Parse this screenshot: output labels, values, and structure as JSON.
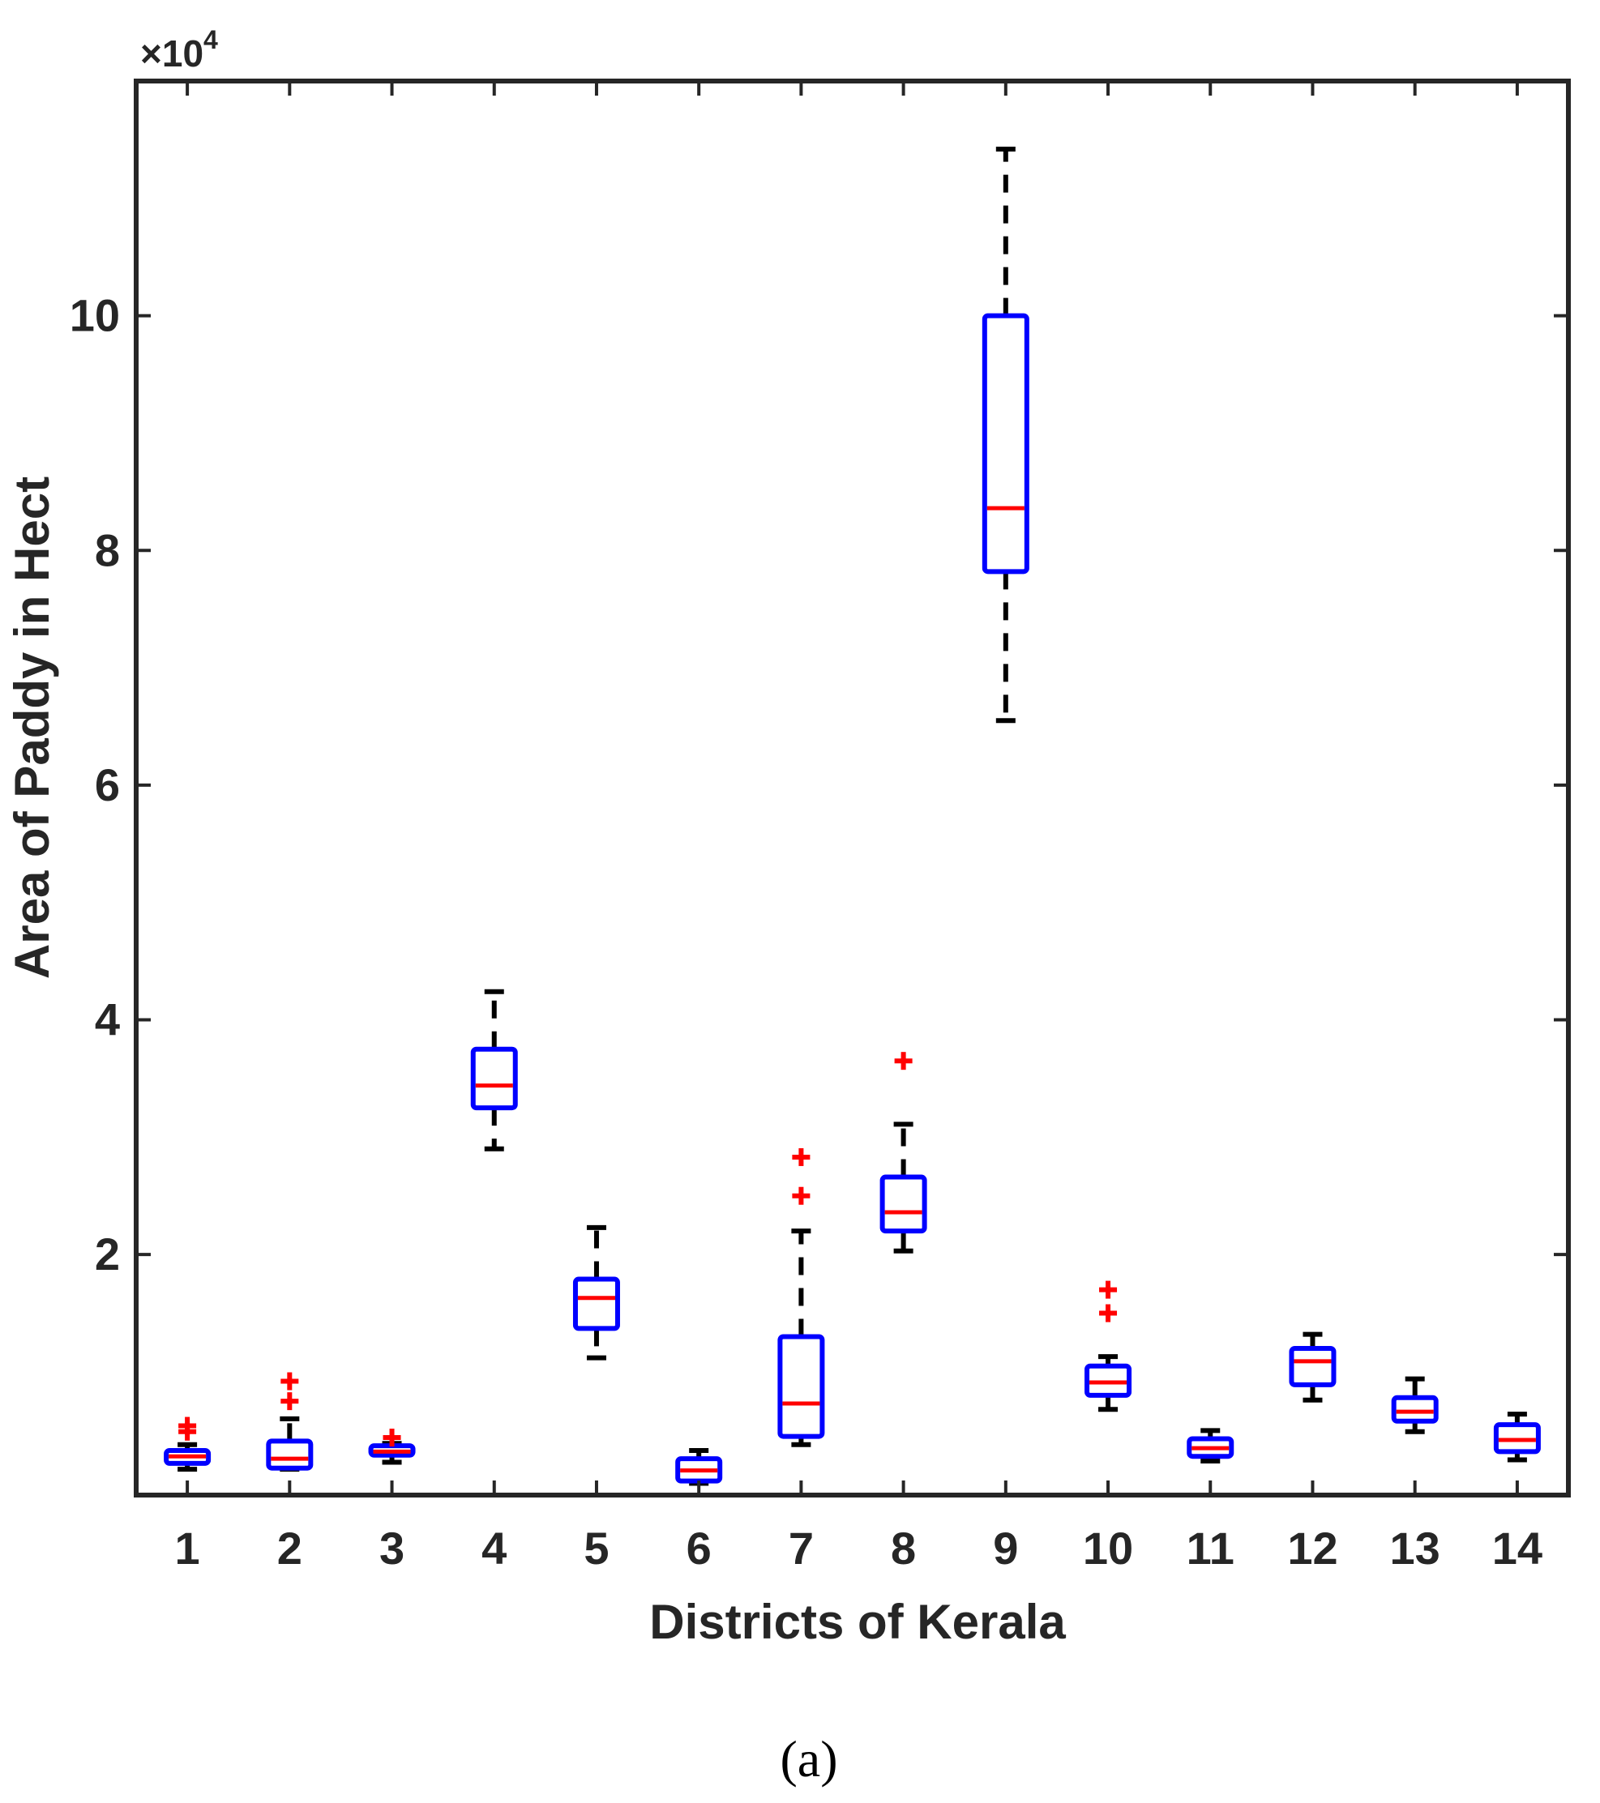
{
  "chart_data": {
    "type": "boxplot",
    "xlabel": "Districts of Kerala",
    "ylabel": "Area of Paddy in Hect",
    "exponent_label": {
      "base": "×10",
      "power": "4"
    },
    "categories": [
      "1",
      "2",
      "3",
      "4",
      "5",
      "6",
      "7",
      "8",
      "9",
      "10",
      "11",
      "12",
      "13",
      "14"
    ],
    "ylim": [
      -500,
      120000
    ],
    "yticks": [
      20000,
      40000,
      60000,
      80000,
      100000
    ],
    "ytick_labels": [
      "2",
      "4",
      "6",
      "8",
      "10"
    ],
    "xlim": [
      0.5,
      14.5
    ],
    "grid": false,
    "boxes": [
      {
        "district": "1",
        "whisker_low": 1700,
        "q1": 2200,
        "median": 2800,
        "q3": 3300,
        "whisker_high": 3800,
        "outliers": [
          4900,
          5400
        ]
      },
      {
        "district": "2",
        "whisker_low": 1700,
        "q1": 1800,
        "median": 2600,
        "q3": 4100,
        "whisker_high": 6000,
        "outliers": [
          7500,
          9200
        ]
      },
      {
        "district": "3",
        "whisker_low": 2300,
        "q1": 2900,
        "median": 3200,
        "q3": 3700,
        "whisker_high": 3900,
        "outliers": [
          4400
        ]
      },
      {
        "district": "4",
        "whisker_low": 29000,
        "q1": 32500,
        "median": 34400,
        "q3": 37500,
        "whisker_high": 42400,
        "outliers": []
      },
      {
        "district": "5",
        "whisker_low": 11200,
        "q1": 13700,
        "median": 16300,
        "q3": 17900,
        "whisker_high": 22300,
        "outliers": []
      },
      {
        "district": "6",
        "whisker_low": 500,
        "q1": 700,
        "median": 1600,
        "q3": 2600,
        "whisker_high": 3300,
        "outliers": []
      },
      {
        "district": "7",
        "whisker_low": 3800,
        "q1": 4500,
        "median": 7300,
        "q3": 13000,
        "whisker_high": 22000,
        "outliers": [
          25000,
          28300
        ]
      },
      {
        "district": "8",
        "whisker_low": 20300,
        "q1": 22000,
        "median": 23600,
        "q3": 26600,
        "whisker_high": 31100,
        "outliers": [
          36500
        ]
      },
      {
        "district": "9",
        "whisker_low": 65500,
        "q1": 78200,
        "median": 83600,
        "q3": 100000,
        "whisker_high": 114200,
        "outliers": []
      },
      {
        "district": "10",
        "whisker_low": 6800,
        "q1": 8000,
        "median": 9100,
        "q3": 10500,
        "whisker_high": 11300,
        "outliers": [
          15000,
          17000
        ]
      },
      {
        "district": "11",
        "whisker_low": 2400,
        "q1": 2800,
        "median": 3500,
        "q3": 4300,
        "whisker_high": 5000,
        "outliers": []
      },
      {
        "district": "12",
        "whisker_low": 7600,
        "q1": 8900,
        "median": 10900,
        "q3": 12000,
        "whisker_high": 13200,
        "outliers": []
      },
      {
        "district": "13",
        "whisker_low": 4900,
        "q1": 5800,
        "median": 6600,
        "q3": 7800,
        "whisker_high": 9400,
        "outliers": []
      },
      {
        "district": "14",
        "whisker_low": 2500,
        "q1": 3200,
        "median": 4200,
        "q3": 5500,
        "whisker_high": 6400,
        "outliers": []
      }
    ],
    "colors": {
      "box": "#0000ff",
      "median": "#ff0000",
      "whisker": "#000000",
      "outlier": "#ff0000",
      "axis": "#262626"
    }
  },
  "caption": "(a)"
}
